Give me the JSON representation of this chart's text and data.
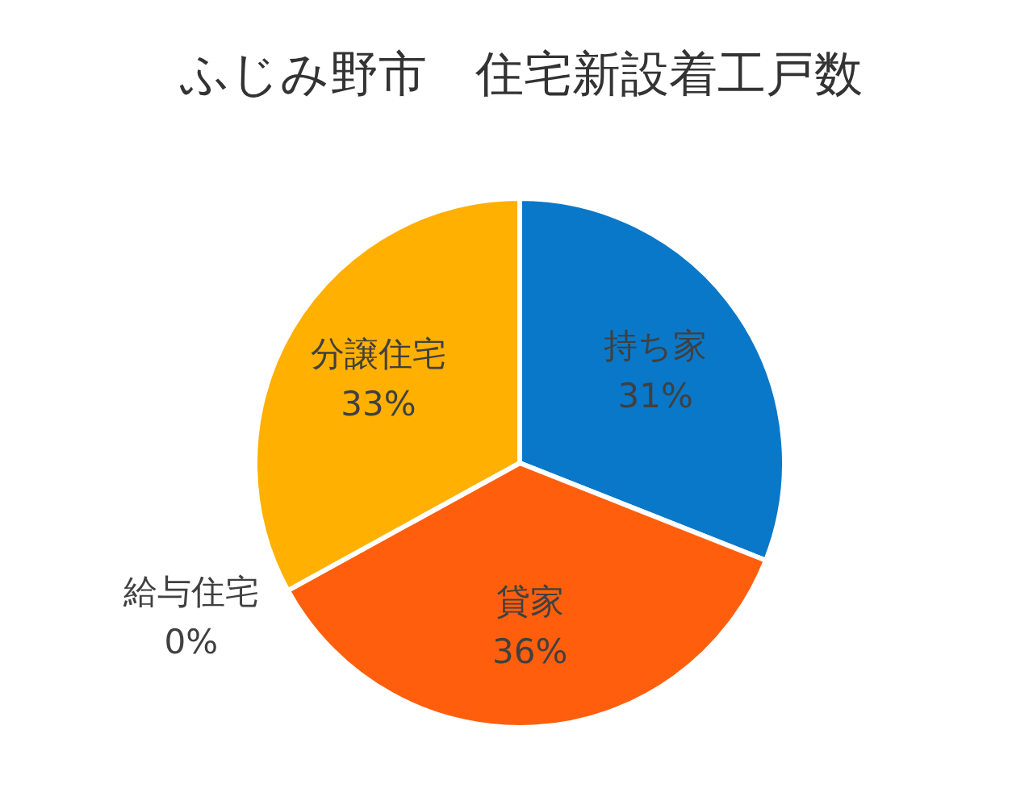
{
  "chart_data": {
    "type": "pie",
    "title": "ふじみ野市　住宅新設着工戸数",
    "categories": [
      "持ち家",
      "貸家",
      "給与住宅",
      "分譲住宅"
    ],
    "values": [
      31,
      36,
      0,
      33
    ],
    "colors": [
      "#0a78c8",
      "#ff5f0d",
      null,
      "#ffb000"
    ],
    "value_labels": [
      "31%",
      "36%",
      "0%",
      "33%"
    ]
  }
}
